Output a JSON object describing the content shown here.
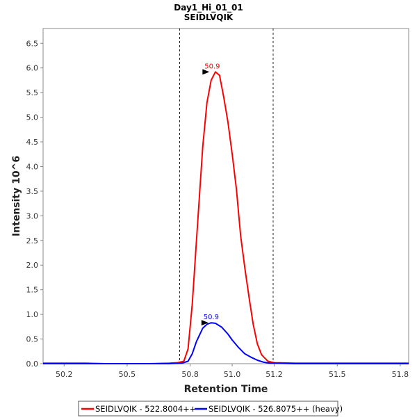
{
  "chart_data": {
    "type": "line",
    "title": "Day1_Hi_01_01",
    "subtitle": "SEIDLVQIK",
    "xlabel": "Retention Time",
    "ylabel": "Intensity 10^6",
    "xlim": [
      50.1,
      51.84
    ],
    "ylim": [
      0,
      6.8
    ],
    "xticks": [
      50.2,
      50.5,
      50.8,
      51.0,
      51.2,
      51.5,
      51.8
    ],
    "xtick_labels": [
      "50.2",
      "50.5",
      "50.8",
      "51.0",
      "51.2",
      "51.5",
      "51.8"
    ],
    "yticks": [
      0,
      0.5,
      1.0,
      1.5,
      2.0,
      2.5,
      3.0,
      3.5,
      4.0,
      4.5,
      5.0,
      5.5,
      6.0,
      6.5
    ],
    "ytick_labels": [
      "0.0",
      "0.5",
      "1.0",
      "1.5",
      "2.0",
      "2.5",
      "3.0",
      "3.5",
      "4.0",
      "4.5",
      "5.0",
      "5.5",
      "6.0",
      "6.5"
    ],
    "integration_bounds": [
      50.75,
      51.195
    ],
    "series": [
      {
        "name": "SEIDLVQIK - 522.8004++",
        "color": "#ff0000",
        "peak_label": "50.9",
        "peak": {
          "x": 50.905,
          "y": 5.92
        },
        "x": [
          50.1,
          50.2,
          50.3,
          50.4,
          50.5,
          50.6,
          50.7,
          50.74,
          50.77,
          50.79,
          50.81,
          50.83,
          50.86,
          50.88,
          50.9,
          50.92,
          50.94,
          50.96,
          50.98,
          51.0,
          51.02,
          51.04,
          51.06,
          51.08,
          51.1,
          51.12,
          51.14,
          51.17,
          51.2,
          51.3,
          51.4,
          51.5,
          51.6,
          51.7,
          51.8,
          51.84
        ],
        "y": [
          0.01,
          0.01,
          0.01,
          0.0,
          0.0,
          0.0,
          0.01,
          0.02,
          0.05,
          0.3,
          1.2,
          2.5,
          4.4,
          5.3,
          5.75,
          5.92,
          5.85,
          5.4,
          4.9,
          4.25,
          3.55,
          2.6,
          1.95,
          1.35,
          0.8,
          0.4,
          0.18,
          0.05,
          0.02,
          0.01,
          0.01,
          0.01,
          0.01,
          0.01,
          0.01,
          0.01
        ]
      },
      {
        "name": "SEIDLVQIK - 526.8075++ (heavy)",
        "color": "#0000ff",
        "peak_label": "50.9",
        "peak": {
          "x": 50.9,
          "y": 0.83
        },
        "x": [
          50.1,
          50.2,
          50.3,
          50.4,
          50.5,
          50.6,
          50.7,
          50.76,
          50.79,
          50.81,
          50.83,
          50.86,
          50.88,
          50.9,
          50.92,
          50.95,
          50.98,
          51.0,
          51.03,
          51.06,
          51.09,
          51.12,
          51.15,
          51.18,
          51.2,
          51.3,
          51.4,
          51.5,
          51.6,
          51.7,
          51.8,
          51.84
        ],
        "y": [
          0.0,
          0.0,
          0.0,
          0.0,
          0.0,
          0.0,
          0.0,
          0.01,
          0.05,
          0.2,
          0.45,
          0.72,
          0.8,
          0.83,
          0.82,
          0.74,
          0.6,
          0.48,
          0.33,
          0.2,
          0.13,
          0.07,
          0.03,
          0.01,
          0.01,
          0.0,
          0.0,
          0.0,
          0.0,
          0.0,
          0.0,
          0.0
        ]
      }
    ],
    "legend": {
      "placement": "bottom",
      "entries": [
        "SEIDLVQIK - 522.8004++",
        "SEIDLVQIK - 526.8075++ (heavy)"
      ]
    }
  }
}
